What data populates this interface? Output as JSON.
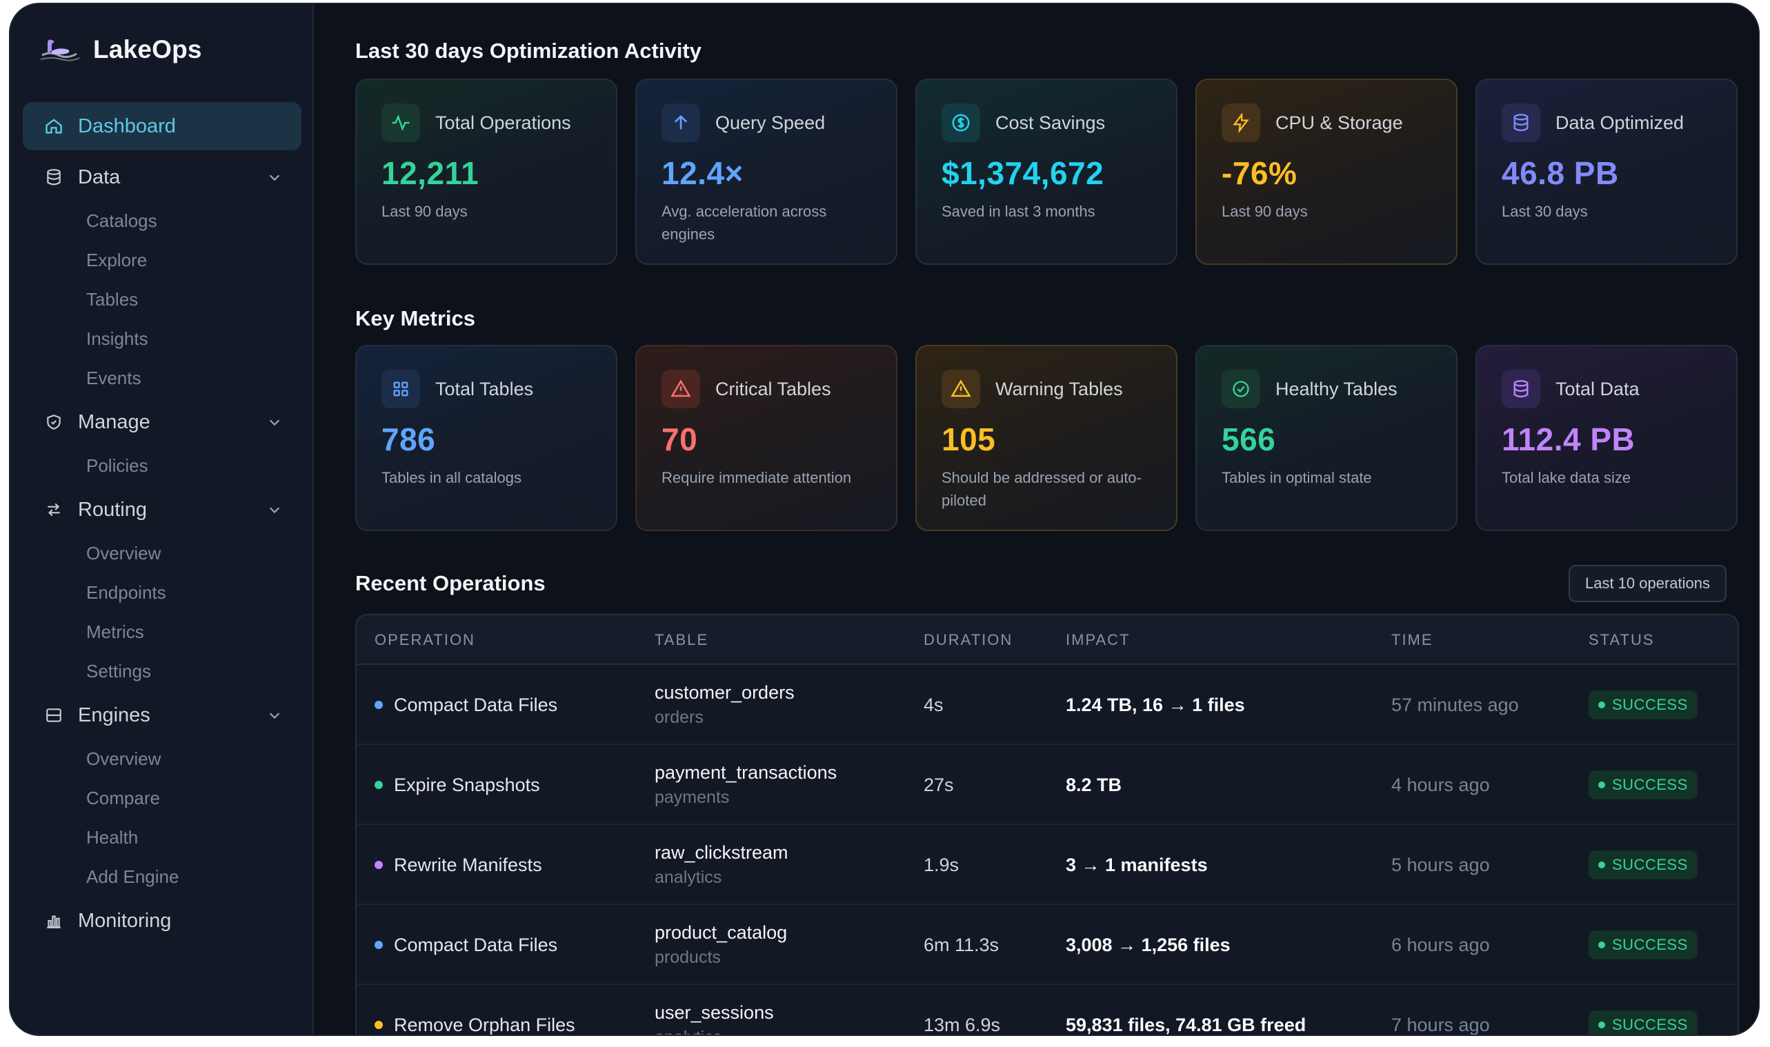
{
  "app": {
    "name": "LakeOps"
  },
  "sidebar": {
    "dashboard": "Dashboard",
    "data": {
      "label": "Data",
      "items": [
        "Catalogs",
        "Explore",
        "Tables",
        "Insights",
        "Events"
      ]
    },
    "manage": {
      "label": "Manage",
      "items": [
        "Policies"
      ]
    },
    "routing": {
      "label": "Routing",
      "items": [
        "Overview",
        "Endpoints",
        "Metrics",
        "Settings"
      ]
    },
    "engines": {
      "label": "Engines",
      "items": [
        "Overview",
        "Compare",
        "Health",
        "Add Engine"
      ]
    },
    "monitoring": "Monitoring"
  },
  "activity": {
    "title": "Last 30 days Optimization Activity",
    "cards": [
      {
        "label": "Total Operations",
        "value": "12,211",
        "sub": "Last 90 days",
        "icon": "activity-icon",
        "color": "#34d399"
      },
      {
        "label": "Query Speed",
        "value": "12.4×",
        "sub": "Avg. acceleration across engines",
        "icon": "arrow-up-icon",
        "color": "#60a5fa"
      },
      {
        "label": "Cost Savings",
        "value": "$1,374,672",
        "sub": "Saved in last 3 months",
        "icon": "dollar-icon",
        "color": "#22d3ee"
      },
      {
        "label": "CPU & Storage",
        "value": "-76%",
        "sub": "Last 90 days",
        "icon": "lightning-icon",
        "color": "#fbbf24"
      },
      {
        "label": "Data Optimized",
        "value": "46.8 PB",
        "sub": "Last 30 days",
        "icon": "database-icon",
        "color": "#818cf8"
      }
    ]
  },
  "metrics": {
    "title": "Key Metrics",
    "cards": [
      {
        "label": "Total Tables",
        "value": "786",
        "sub": "Tables in all catalogs",
        "icon": "grid-icon",
        "color": "#60a5fa"
      },
      {
        "label": "Critical Tables",
        "value": "70",
        "sub": "Require immediate attention",
        "icon": "alert-triangle-icon",
        "color": "#f87171"
      },
      {
        "label": "Warning Tables",
        "value": "105",
        "sub": "Should be addressed or auto-piloted",
        "icon": "warning-triangle-icon",
        "color": "#fbbf24"
      },
      {
        "label": "Healthy Tables",
        "value": "566",
        "sub": "Tables in optimal state",
        "icon": "check-circle-icon",
        "color": "#34d399"
      },
      {
        "label": "Total Data",
        "value": "112.4 PB",
        "sub": "Total lake data size",
        "icon": "database-icon",
        "color": "#c084fc"
      }
    ]
  },
  "recent": {
    "title": "Recent Operations",
    "range_button": "Last 10 operations",
    "columns": [
      "OPERATION",
      "TABLE",
      "DURATION",
      "IMPACT",
      "TIME",
      "STATUS"
    ],
    "rows": [
      {
        "operation": "Compact Data Files",
        "dot": "#60a5fa",
        "table": "customer_orders",
        "schema": "orders",
        "duration": "4s",
        "impact": "1.24 TB, 16 → 1 files",
        "time": "57 minutes ago",
        "status": "SUCCESS"
      },
      {
        "operation": "Expire Snapshots",
        "dot": "#34d399",
        "table": "payment_transactions",
        "schema": "payments",
        "duration": "27s",
        "impact": "8.2 TB",
        "time": "4 hours ago",
        "status": "SUCCESS"
      },
      {
        "operation": "Rewrite Manifests",
        "dot": "#c084fc",
        "table": "raw_clickstream",
        "schema": "analytics",
        "duration": "1.9s",
        "impact": "3 → 1 manifests",
        "time": "5 hours ago",
        "status": "SUCCESS"
      },
      {
        "operation": "Compact Data Files",
        "dot": "#60a5fa",
        "table": "product_catalog",
        "schema": "products",
        "duration": "6m 11.3s",
        "impact": "3,008 → 1,256 files",
        "time": "6 hours ago",
        "status": "SUCCESS"
      },
      {
        "operation": "Remove Orphan Files",
        "dot": "#fbbf24",
        "table": "user_sessions",
        "schema": "analytics",
        "duration": "13m 6.9s",
        "impact": "59,831 files, 74.81 GB freed",
        "time": "7 hours ago",
        "status": "SUCCESS"
      }
    ]
  }
}
